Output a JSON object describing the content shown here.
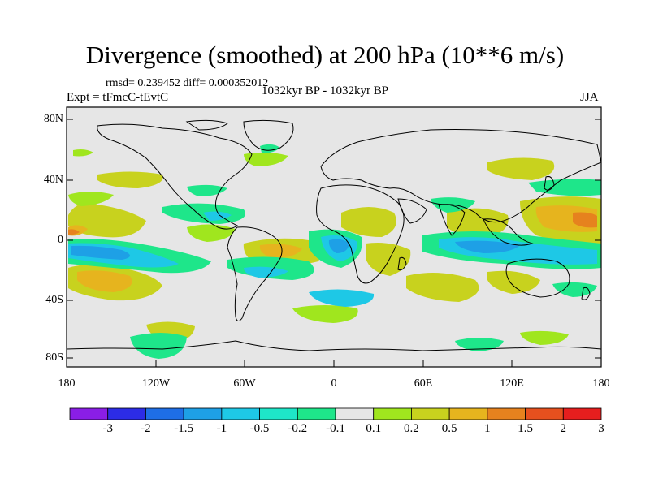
{
  "title": "Divergence (smoothed) at 200 hPa (10**6 m/s)",
  "stats": "rmsd= 0.239452 diff= 0.000352012",
  "experiment": "Expt = tFmcC-tEvtC",
  "period": "1032kyr BP - 1032kyr BP",
  "season": "JJA",
  "colors": {
    "land_background": "#e6e6e6",
    "coastline": "#000000"
  },
  "axes": {
    "y_ticks": [
      "80N",
      "40N",
      "0",
      "40S",
      "80S"
    ],
    "x_ticks": [
      "180",
      "120W",
      "60W",
      "0",
      "60E",
      "120E",
      "180"
    ]
  },
  "colorbar": {
    "labels": [
      "-3",
      "-2",
      "-1.5",
      "-1",
      "-0.5",
      "-0.2",
      "-0.1",
      "0.1",
      "0.2",
      "0.5",
      "1",
      "1.5",
      "2",
      "3"
    ],
    "colors": [
      "#8a1ee6",
      "#2c2ce6",
      "#1e6ee6",
      "#1ea0e6",
      "#1ec8e6",
      "#1ee6c8",
      "#1ee68a",
      "#e6e6e6",
      "#a0e61e",
      "#c8d21e",
      "#e6b41e",
      "#e6821e",
      "#e6501e",
      "#e61e1e"
    ]
  }
}
